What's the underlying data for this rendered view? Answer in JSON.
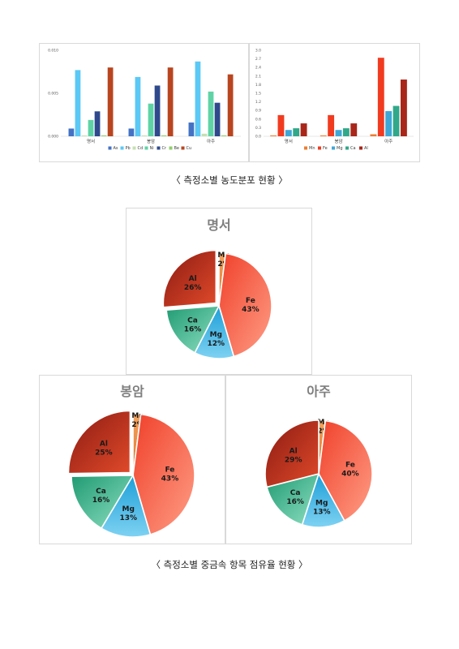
{
  "captions": {
    "top": "〈 측정소별 농도분포 현황 〉",
    "bottom": "〈 측정소별 중금속 항목 점유율 현황 〉"
  },
  "chart_data": [
    {
      "type": "bar",
      "categories": [
        "명서",
        "봉암",
        "아주"
      ],
      "ylim": [
        0,
        0.01
      ],
      "yticks": [
        "0.000",
        "0.005",
        "0.010"
      ],
      "legend_position": "bottom",
      "grid": false,
      "series": [
        {
          "name": "As",
          "color": "#4472c4",
          "values": [
            0.0009,
            0.0009,
            0.0016
          ]
        },
        {
          "name": "Pb",
          "color": "#5bc8f5",
          "values": [
            0.0077,
            0.0069,
            0.0087
          ]
        },
        {
          "name": "Cd",
          "color": "#c5e0b4",
          "values": [
            0.0001,
            0.0001,
            0.0003
          ]
        },
        {
          "name": "Ni",
          "color": "#5fd3a6",
          "values": [
            0.0019,
            0.0038,
            0.0052
          ]
        },
        {
          "name": "Cr",
          "color": "#2e4a8c",
          "values": [
            0.0029,
            0.0059,
            0.0039
          ]
        },
        {
          "name": "Be",
          "color": "#8fcf6a",
          "values": [
            0.0001,
            0.0001,
            0.0001
          ]
        },
        {
          "name": "Cu",
          "color": "#b8451f",
          "values": [
            0.008,
            0.008,
            0.0072
          ]
        }
      ]
    },
    {
      "type": "bar",
      "categories": [
        "명서",
        "봉암",
        "아주"
      ],
      "ylim": [
        0,
        3.0
      ],
      "yticks": [
        "0.0",
        "0.3",
        "0.6",
        "0.9",
        "1.2",
        "1.5",
        "1.8",
        "2.1",
        "2.4",
        "2.7",
        "3.0"
      ],
      "legend_position": "bottom",
      "grid": false,
      "series": [
        {
          "name": "Mn",
          "color": "#ed7d31",
          "values": [
            0.03,
            0.03,
            0.07
          ]
        },
        {
          "name": "Fe",
          "color": "#f03b20",
          "values": [
            0.74,
            0.74,
            2.74
          ]
        },
        {
          "name": "Mg",
          "color": "#3fa7d6",
          "values": [
            0.22,
            0.22,
            0.88
          ]
        },
        {
          "name": "Ca",
          "color": "#31a88a",
          "values": [
            0.28,
            0.28,
            1.06
          ]
        },
        {
          "name": "Al",
          "color": "#a8261a",
          "values": [
            0.45,
            0.45,
            1.98
          ]
        }
      ]
    },
    {
      "type": "pie",
      "title": "명서",
      "slices": [
        {
          "name": "Mn",
          "value": 2,
          "label": "2%"
        },
        {
          "name": "Fe",
          "value": 43,
          "label": "43%"
        },
        {
          "name": "Mg",
          "value": 12,
          "label": "12%"
        },
        {
          "name": "Ca",
          "value": 16,
          "label": "16%"
        },
        {
          "name": "Al",
          "value": 26,
          "label": "26%"
        }
      ]
    },
    {
      "type": "pie",
      "title": "봉암",
      "slices": [
        {
          "name": "Mn",
          "value": 2,
          "label": "2%"
        },
        {
          "name": "Fe",
          "value": 43,
          "label": "43%"
        },
        {
          "name": "Mg",
          "value": 13,
          "label": "13%"
        },
        {
          "name": "Ca",
          "value": 16,
          "label": "16%"
        },
        {
          "name": "Al",
          "value": 25,
          "label": "25%"
        }
      ]
    },
    {
      "type": "pie",
      "title": "아주",
      "slices": [
        {
          "name": "Mn",
          "value": 2,
          "label": "2%"
        },
        {
          "name": "Fe",
          "value": 40,
          "label": "40%"
        },
        {
          "name": "Mg",
          "value": 13,
          "label": "13%"
        },
        {
          "name": "Ca",
          "value": 16,
          "label": "16%"
        },
        {
          "name": "Al",
          "value": 29,
          "label": "29%"
        }
      ]
    }
  ]
}
